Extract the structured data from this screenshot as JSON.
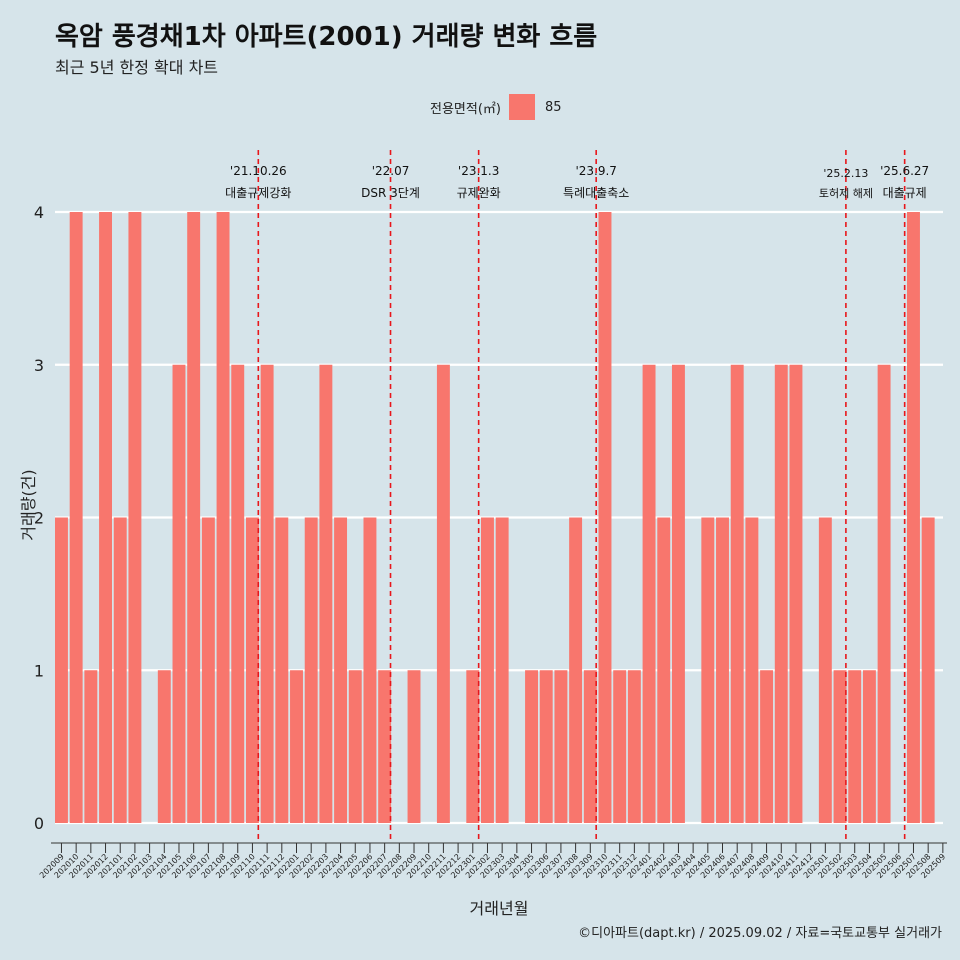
{
  "title": "옥암 풍경채1차 아파트(2001) 거래량 변화 흐름",
  "subtitle": "최근 5년 한정 확대 차트",
  "legend": {
    "title": "전용면적(㎡)",
    "item": "85",
    "color": "#f8766d"
  },
  "caption": "©디아파트(dapt.kr) / 2025.09.02 / 자료=국토교통부 실거래가",
  "chart_data": {
    "type": "bar",
    "xlabel": "거래년월",
    "ylabel": "거래량(건)",
    "ylim": [
      0,
      4
    ],
    "yticks": [
      0,
      1,
      2,
      3,
      4
    ],
    "grid": true,
    "legend_position": "top",
    "series": [
      {
        "name": "85",
        "color": "#f8766d"
      }
    ],
    "categories": [
      "202009",
      "202010",
      "202011",
      "202012",
      "202101",
      "202102",
      "202103",
      "202104",
      "202105",
      "202106",
      "202107",
      "202108",
      "202109",
      "202110",
      "202111",
      "202112",
      "202201",
      "202202",
      "202203",
      "202204",
      "202205",
      "202206",
      "202207",
      "202208",
      "202209",
      "202210",
      "202211",
      "202212",
      "202301",
      "202302",
      "202303",
      "202304",
      "202305",
      "202306",
      "202307",
      "202308",
      "202309",
      "202310",
      "202311",
      "202312",
      "202401",
      "202402",
      "202403",
      "202404",
      "202405",
      "202406",
      "202407",
      "202408",
      "202409",
      "202410",
      "202411",
      "202412",
      "202501",
      "202502",
      "202503",
      "202504",
      "202505",
      "202506",
      "202507",
      "202508",
      "202509"
    ],
    "values": [
      2,
      4,
      1,
      4,
      2,
      4,
      null,
      1,
      3,
      4,
      2,
      4,
      3,
      2,
      3,
      2,
      1,
      2,
      3,
      2,
      1,
      2,
      1,
      null,
      1,
      null,
      3,
      null,
      1,
      2,
      2,
      null,
      1,
      1,
      1,
      2,
      1,
      4,
      1,
      1,
      3,
      2,
      3,
      null,
      2,
      2,
      3,
      2,
      1,
      3,
      3,
      null,
      2,
      1,
      1,
      1,
      3,
      null,
      4,
      2,
      null
    ],
    "annotations": [
      {
        "date": "'21.10.26",
        "label": "대출규제강화",
        "position": 13.4
      },
      {
        "date": "'22.07",
        "label": "DSR 3단계",
        "position": 22.4
      },
      {
        "date": "'23.1.3",
        "label": "규제완화",
        "position": 28.4
      },
      {
        "date": "'23.9.7",
        "label": "특례대출축소",
        "position": 36.4
      },
      {
        "date": "'25.2.13",
        "label": "토허제 해제",
        "position": 53.4
      },
      {
        "date": "'25.6.27",
        "label": "대출규제",
        "position": 57.4
      }
    ]
  }
}
